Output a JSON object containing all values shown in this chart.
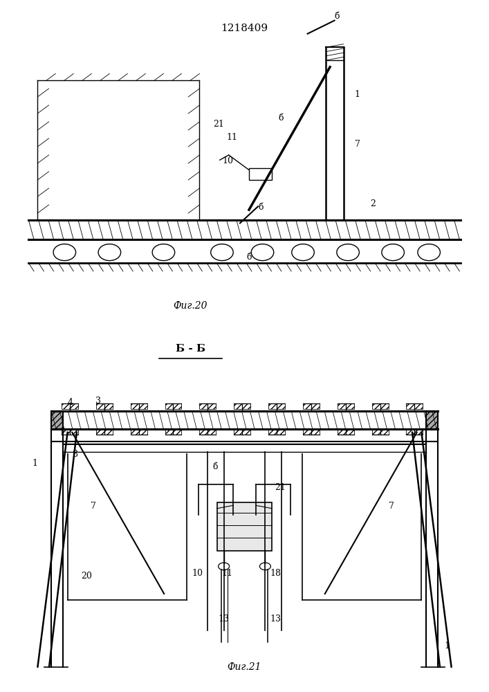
{
  "title": "1218409",
  "fig20_label": "Фиг.20",
  "fig21_label": "Фиг.21",
  "section_label": "Б - Б",
  "bg_color": "#ffffff",
  "lc": "#000000",
  "lw": 1.0
}
